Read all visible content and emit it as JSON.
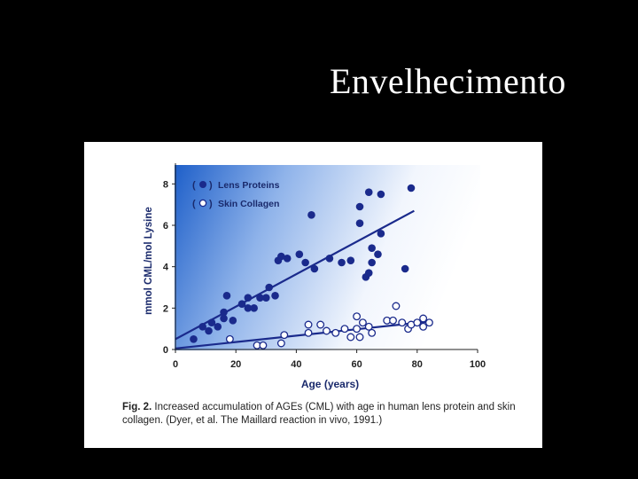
{
  "slide": {
    "title": "Envelhecimento"
  },
  "caption": {
    "label": "Fig. 2.",
    "text": " Increased accumulation of AGEs (CML) with age in human lens protein and skin collagen. (Dyer, et al. The Maillard reaction in vivo, 1991.)"
  },
  "chart_data": {
    "type": "scatter",
    "xlabel": "Age (years)",
    "ylabel": "mmol CML/mol Lysine",
    "xlim": [
      0,
      100
    ],
    "ylim": [
      0,
      9
    ],
    "xticks": [
      0,
      20,
      40,
      60,
      80,
      100
    ],
    "yticks": [
      0,
      2,
      4,
      6,
      8
    ],
    "legend": {
      "position": "top-left",
      "labels": [
        "Lens Proteins",
        "Skin Collagen"
      ]
    },
    "colors": {
      "lens": "#1a2a8c",
      "skin_fill": "#ffffff",
      "skin_stroke": "#1a2a8c",
      "bg_start": "#1e5fc9",
      "bg_end": "#ffffff"
    },
    "series": [
      {
        "name": "Lens Proteins",
        "marker": "filled-circle",
        "points": [
          [
            6,
            0.5
          ],
          [
            9,
            1.1
          ],
          [
            11,
            0.9
          ],
          [
            12,
            1.3
          ],
          [
            14,
            1.1
          ],
          [
            16,
            1.5
          ],
          [
            16,
            1.8
          ],
          [
            17,
            2.6
          ],
          [
            19,
            1.4
          ],
          [
            22,
            2.2
          ],
          [
            24,
            2.0
          ],
          [
            24,
            2.5
          ],
          [
            26,
            2.0
          ],
          [
            28,
            2.5
          ],
          [
            30,
            2.5
          ],
          [
            31,
            3.0
          ],
          [
            33,
            2.6
          ],
          [
            34,
            4.3
          ],
          [
            35,
            4.5
          ],
          [
            37,
            4.4
          ],
          [
            41,
            4.6
          ],
          [
            43,
            4.2
          ],
          [
            45,
            6.5
          ],
          [
            46,
            3.9
          ],
          [
            51,
            4.4
          ],
          [
            55,
            4.2
          ],
          [
            58,
            4.3
          ],
          [
            61,
            6.1
          ],
          [
            61,
            6.9
          ],
          [
            63,
            3.5
          ],
          [
            64,
            3.7
          ],
          [
            64,
            7.6
          ],
          [
            65,
            4.9
          ],
          [
            65,
            4.2
          ],
          [
            67,
            4.6
          ],
          [
            68,
            7.5
          ],
          [
            68,
            5.6
          ],
          [
            76,
            3.9
          ],
          [
            78,
            7.8
          ]
        ]
      },
      {
        "name": "Skin Collagen",
        "marker": "open-circle",
        "points": [
          [
            18,
            0.5
          ],
          [
            27,
            0.2
          ],
          [
            29,
            0.2
          ],
          [
            35,
            0.3
          ],
          [
            36,
            0.7
          ],
          [
            44,
            1.2
          ],
          [
            44,
            0.8
          ],
          [
            48,
            1.2
          ],
          [
            50,
            0.9
          ],
          [
            53,
            0.8
          ],
          [
            56,
            1.0
          ],
          [
            58,
            0.6
          ],
          [
            60,
            1.6
          ],
          [
            60,
            1.0
          ],
          [
            61,
            0.6
          ],
          [
            62,
            1.3
          ],
          [
            64,
            1.1
          ],
          [
            65,
            0.8
          ],
          [
            70,
            1.4
          ],
          [
            72,
            1.4
          ],
          [
            73,
            2.1
          ],
          [
            75,
            1.3
          ],
          [
            77,
            1.0
          ],
          [
            78,
            1.2
          ],
          [
            80,
            1.3
          ],
          [
            82,
            1.1
          ],
          [
            82,
            1.5
          ],
          [
            84,
            1.3
          ]
        ]
      }
    ],
    "trendlines": [
      {
        "series": "Lens Proteins",
        "from": [
          0,
          0.5
        ],
        "to": [
          79,
          6.7
        ]
      },
      {
        "series": "Skin Collagen",
        "from": [
          0,
          0.05
        ],
        "to": [
          84,
          1.35
        ]
      }
    ]
  }
}
